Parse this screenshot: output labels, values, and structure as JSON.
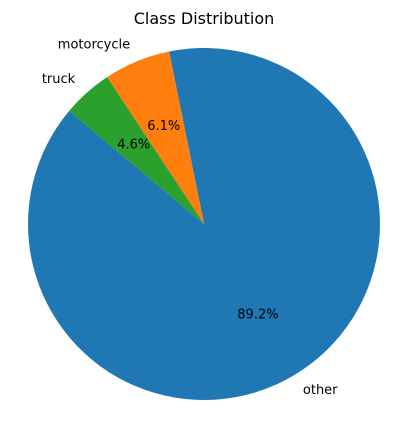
{
  "chart_data": {
    "type": "pie",
    "title": "Class Distribution",
    "start_angle_deg": 140,
    "direction": "counterclockwise",
    "categories": [
      "other",
      "motorcycle",
      "truck"
    ],
    "values": [
      89.2,
      6.1,
      4.6
    ],
    "percent_labels": [
      "89.2%",
      "6.1%",
      "4.6%"
    ],
    "colors": [
      "#1f77b4",
      "#ff7f0e",
      "#2ca02c"
    ]
  }
}
